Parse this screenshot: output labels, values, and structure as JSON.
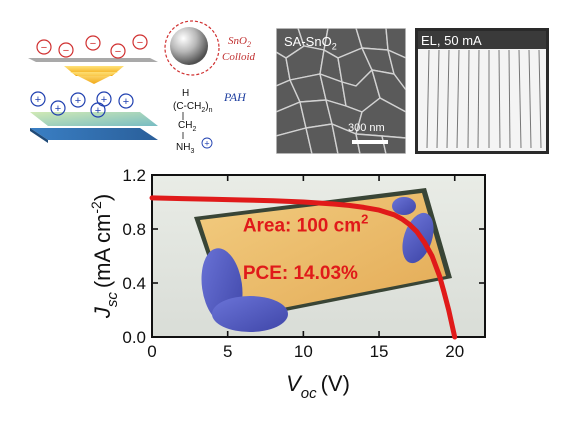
{
  "schematic": {
    "colloid_line1": "SnO",
    "colloid_sub": "2",
    "colloid_line2": "Colloid",
    "pah_label": "PAH",
    "formula_h": "H",
    "formula_chain": "(C-CH",
    "formula_chain_sub": "2",
    "formula_chain_end": ")",
    "formula_n": "n",
    "formula_ch2": "CH",
    "formula_ch2_sub": "2",
    "formula_nh3": "NH",
    "formula_nh3_sub": "3",
    "formula_plus": "+",
    "minus_sign": "−",
    "plus_sign": "+"
  },
  "sem_image": {
    "label": "SA-SnO",
    "label_sub": "2",
    "scale_bar": "300 nm"
  },
  "el_image": {
    "label": "EL, 50 mA"
  },
  "chart_data": {
    "type": "line",
    "xlabel_main": "V",
    "xlabel_sub": "oc",
    "xlabel_unit": "(V)",
    "ylabel_main": "J",
    "ylabel_sub": "sc",
    "ylabel_unit": "(mA cm",
    "ylabel_sup": "-2",
    "ylabel_close": ")",
    "xlim": [
      0,
      22
    ],
    "ylim": [
      0,
      1.2
    ],
    "x_ticks": [
      0,
      5,
      10,
      15,
      20
    ],
    "x_tick_labels": [
      "0",
      "5",
      "10",
      "15",
      "20"
    ],
    "y_ticks": [
      0.0,
      0.4,
      0.8,
      1.2
    ],
    "y_tick_labels": [
      "0.0",
      "0.4",
      "0.8",
      "1.2"
    ],
    "series": [
      {
        "color": "#e01a1a",
        "x": [
          0,
          2,
          4,
          6,
          8,
          10,
          12,
          13,
          14,
          15,
          16,
          16.5,
          17,
          17.5,
          18,
          18.5,
          19,
          19.3,
          19.6,
          19.8,
          20.0
        ],
        "y": [
          1.03,
          1.025,
          1.02,
          1.015,
          1.01,
          1.0,
          0.985,
          0.975,
          0.96,
          0.94,
          0.905,
          0.875,
          0.835,
          0.78,
          0.7,
          0.6,
          0.45,
          0.33,
          0.2,
          0.1,
          0.0
        ]
      }
    ],
    "annotations": [
      {
        "text": "Area: 100 cm",
        "sup": "2",
        "x": 6,
        "y": 0.78
      },
      {
        "text": "PCE: 14.03%",
        "x": 6,
        "y": 0.43
      }
    ]
  }
}
